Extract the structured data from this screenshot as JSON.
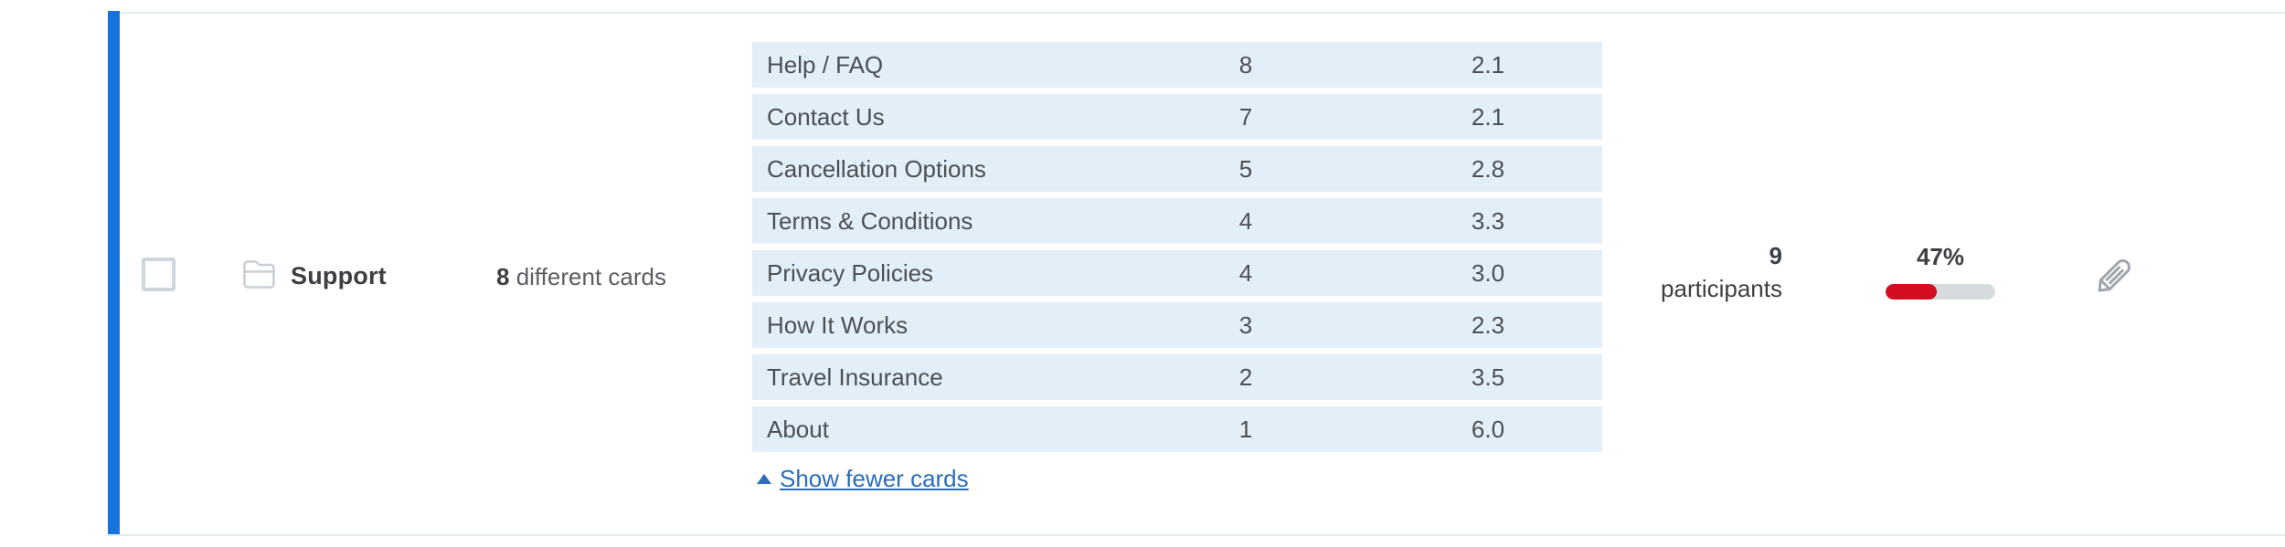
{
  "colors": {
    "accent_bar": "#1673dd",
    "table_row_bg": "#e2eef8",
    "link_blue": "#2a6db8",
    "progress_fill_red": "#d40d21",
    "progress_track_gray": "#d6dbde"
  },
  "category_row": {
    "name": "Support",
    "cards_count": "8",
    "cards_count_label": " different cards",
    "cards": [
      {
        "label": "Help / FAQ",
        "frequency": "8",
        "avg_position": "2.1"
      },
      {
        "label": "Contact Us",
        "frequency": "7",
        "avg_position": "2.1"
      },
      {
        "label": "Cancellation Options",
        "frequency": "5",
        "avg_position": "2.8"
      },
      {
        "label": "Terms & Conditions",
        "frequency": "4",
        "avg_position": "3.3"
      },
      {
        "label": "Privacy Policies",
        "frequency": "4",
        "avg_position": "3.0"
      },
      {
        "label": "How It Works",
        "frequency": "3",
        "avg_position": "2.3"
      },
      {
        "label": "Travel Insurance",
        "frequency": "2",
        "avg_position": "3.5"
      },
      {
        "label": "About",
        "frequency": "1",
        "avg_position": "6.0"
      }
    ],
    "show_fewer_label": "Show fewer cards",
    "participants_count": "9",
    "participants_label": "participants",
    "agreement_percent_label": "47%",
    "agreement_percent_value": 47
  }
}
